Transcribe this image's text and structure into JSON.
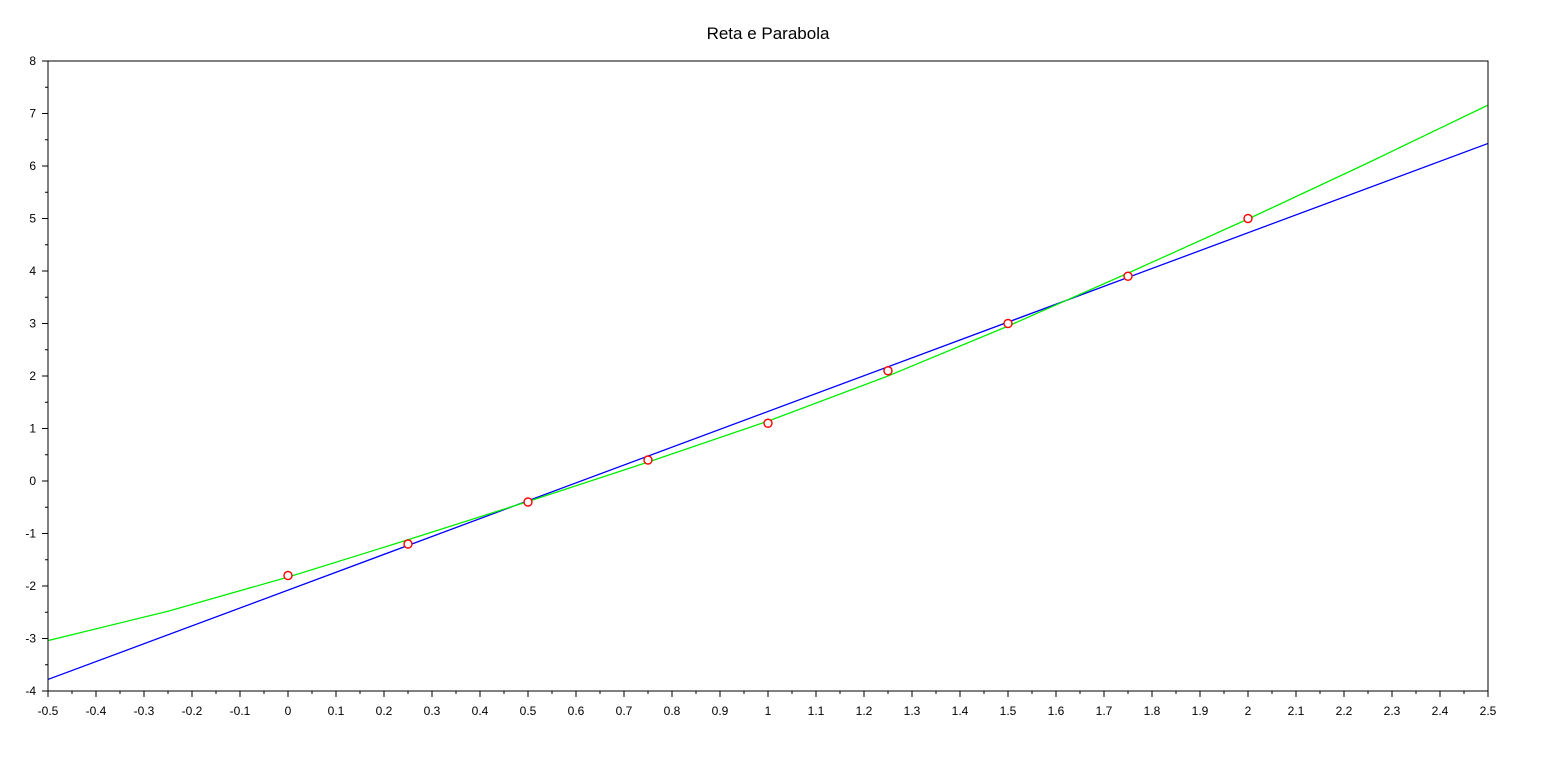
{
  "chart_data": {
    "type": "line",
    "title": "Reta e Parabola",
    "xlabel": "",
    "ylabel": "",
    "xlim": [
      -0.5,
      2.5
    ],
    "ylim": [
      -4,
      8
    ],
    "grid": false,
    "x_ticks": [
      "-0.5",
      "-0.4",
      "-0.3",
      "-0.2",
      "-0.1",
      "0",
      "0.1",
      "0.2",
      "0.3",
      "0.4",
      "0.5",
      "0.6",
      "0.7",
      "0.8",
      "0.9",
      "1",
      "1.1",
      "1.2",
      "1.3",
      "1.4",
      "1.5",
      "1.6",
      "1.7",
      "1.8",
      "1.9",
      "2",
      "2.1",
      "2.2",
      "2.3",
      "2.4",
      "2.5"
    ],
    "y_ticks": [
      "-4",
      "-3",
      "-2",
      "-1",
      "0",
      "1",
      "2",
      "3",
      "4",
      "5",
      "6",
      "7",
      "8"
    ],
    "series": [
      {
        "kind": "line",
        "color": "#0000ff",
        "x": [
          -0.5,
          2.5
        ],
        "y": [
          -3.78,
          6.43
        ]
      },
      {
        "kind": "line",
        "color": "#00ee00",
        "x": [
          -0.5,
          -0.25,
          0,
          0.25,
          0.5,
          0.75,
          1,
          1.25,
          1.5,
          1.75,
          2,
          2.25,
          2.5
        ],
        "y": [
          -3.04,
          -2.48,
          -1.83,
          -1.12,
          -0.39,
          0.36,
          1.14,
          2.0,
          2.95,
          3.96,
          4.99,
          6.06,
          7.16
        ]
      },
      {
        "kind": "scatter",
        "color": "#ff0000",
        "x": [
          0,
          0.25,
          0.5,
          0.75,
          1,
          1.25,
          1.5,
          1.75,
          2
        ],
        "y": [
          -1.8,
          -1.2,
          -0.4,
          0.4,
          1.1,
          2.1,
          3.0,
          3.9,
          5.0
        ]
      }
    ]
  }
}
